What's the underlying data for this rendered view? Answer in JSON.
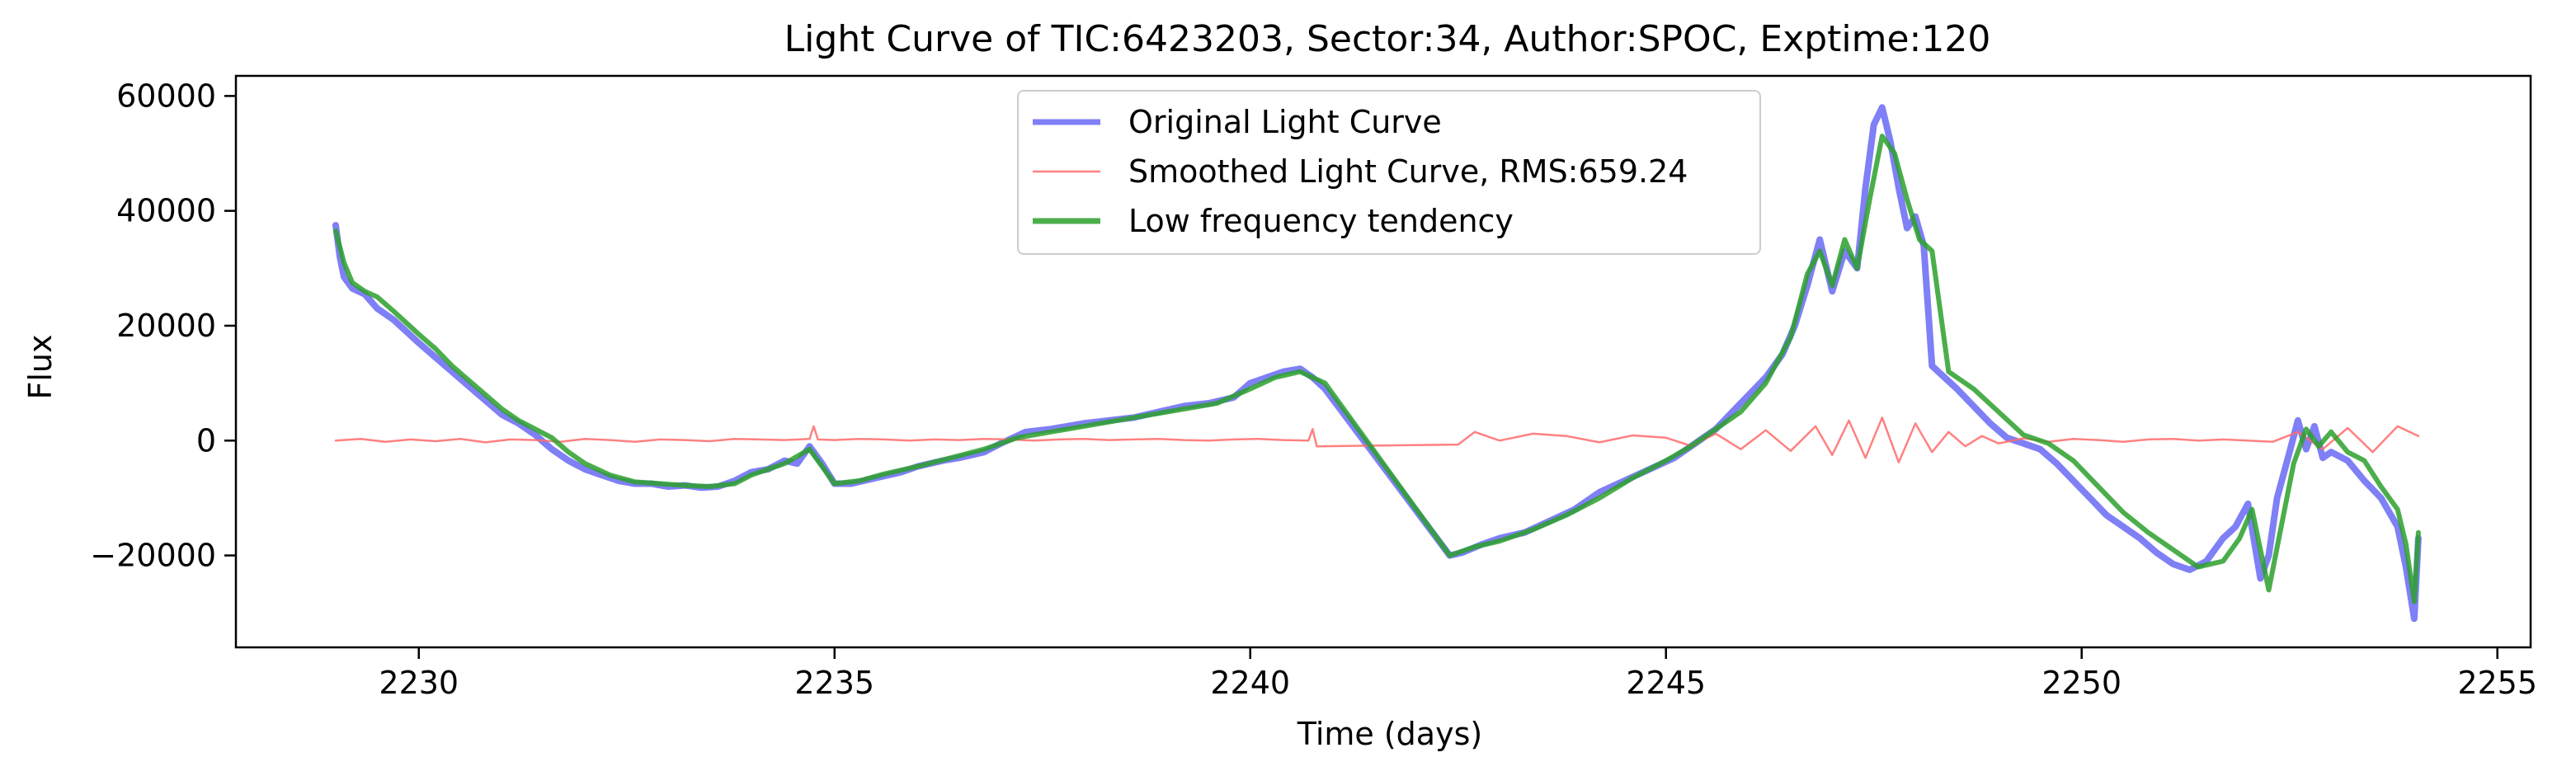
{
  "chart_data": {
    "type": "line",
    "title": "Light Curve of TIC:6423203, Sector:34, Author:SPOC, Exptime:120",
    "xlabel": "Time (days)",
    "ylabel": "Flux",
    "xlim": [
      2227.8,
      2255.4
    ],
    "ylim": [
      -36000,
      63500
    ],
    "xticks": [
      2230,
      2235,
      2240,
      2245,
      2250,
      2255
    ],
    "yticks": [
      -20000,
      0,
      20000,
      40000,
      60000
    ],
    "ytick_labels": [
      "−20000",
      "0",
      "20000",
      "40000",
      "60000"
    ],
    "grid": false,
    "legend_position": "upper center",
    "series": [
      {
        "name": "Original Light Curve",
        "color": "#0000ee",
        "style": "thick-line-alpha-0.5",
        "x": [
          2229.0,
          2229.05,
          2229.1,
          2229.2,
          2229.35,
          2229.5,
          2229.7,
          2229.85,
          2230.0,
          2230.2,
          2230.4,
          2230.6,
          2230.8,
          2231.0,
          2231.2,
          2231.4,
          2231.6,
          2231.8,
          2232.0,
          2232.2,
          2232.4,
          2232.6,
          2232.8,
          2233.0,
          2233.2,
          2233.4,
          2233.6,
          2233.8,
          2234.0,
          2234.2,
          2234.4,
          2234.55,
          2234.7,
          2234.85,
          2235.0,
          2235.2,
          2235.5,
          2235.8,
          2236.0,
          2236.3,
          2236.5,
          2236.8,
          2237.0,
          2237.3,
          2237.6,
          2238.0,
          2238.3,
          2238.6,
          2238.9,
          2239.2,
          2239.5,
          2239.8,
          2240.0,
          2240.2,
          2240.4,
          2240.6,
          2240.75,
          2240.9,
          2242.4,
          2242.55,
          2242.8,
          2243.0,
          2243.3,
          2243.6,
          2243.9,
          2244.2,
          2244.5,
          2244.8,
          2245.1,
          2245.4,
          2245.6,
          2245.8,
          2246.0,
          2246.2,
          2246.4,
          2246.55,
          2246.7,
          2246.85,
          2247.0,
          2247.15,
          2247.3,
          2247.4,
          2247.5,
          2247.6,
          2247.7,
          2247.8,
          2247.9,
          2248.0,
          2248.1,
          2248.2,
          2248.35,
          2248.5,
          2248.7,
          2248.9,
          2249.1,
          2249.3,
          2249.5,
          2249.7,
          2249.9,
          2250.1,
          2250.3,
          2250.5,
          2250.7,
          2250.9,
          2251.1,
          2251.3,
          2251.5,
          2251.7,
          2251.85,
          2252.0,
          2252.15,
          2252.25,
          2252.35,
          2252.5,
          2252.6,
          2252.7,
          2252.8,
          2252.9,
          2253.0,
          2253.2,
          2253.4,
          2253.6,
          2253.8,
          2253.9,
          2254.0,
          2254.05
        ],
        "y": [
          37500,
          32000,
          28500,
          26500,
          25500,
          23000,
          21000,
          19000,
          17000,
          14500,
          12000,
          9500,
          7000,
          4500,
          3000,
          1000,
          -1500,
          -3500,
          -5000,
          -6000,
          -7000,
          -7500,
          -7500,
          -8000,
          -7800,
          -8200,
          -8000,
          -7000,
          -5500,
          -5000,
          -3500,
          -4000,
          -1000,
          -4000,
          -7500,
          -7500,
          -6500,
          -5500,
          -4500,
          -3500,
          -3000,
          -2000,
          -500,
          1500,
          2000,
          3000,
          3500,
          4000,
          5000,
          6000,
          6500,
          7500,
          10000,
          11000,
          12000,
          12500,
          11000,
          9000,
          -20000,
          -19500,
          -18000,
          -17000,
          -16000,
          -14000,
          -12000,
          -9000,
          -7000,
          -5000,
          -3000,
          0,
          2000,
          5000,
          8000,
          11000,
          15000,
          20000,
          27000,
          35000,
          26000,
          33000,
          30000,
          44000,
          55000,
          58000,
          52000,
          44000,
          37000,
          39000,
          34000,
          13000,
          11000,
          9000,
          6000,
          3000,
          500,
          -500,
          -1500,
          -4000,
          -7000,
          -10000,
          -13000,
          -15000,
          -17000,
          -19500,
          -21500,
          -22500,
          -21000,
          -17000,
          -15000,
          -11000,
          -24000,
          -20000,
          -10000,
          -2000,
          3500,
          -1500,
          2500,
          -3000,
          -2000,
          -3500,
          -7000,
          -10000,
          -15000,
          -22000,
          -31000,
          -17000
        ]
      },
      {
        "name": "Smoothed Light Curve, RMS:659.24",
        "color": "#ff6b6b",
        "style": "thin-line-alpha-0.8",
        "x": [
          2229.0,
          2229.3,
          2229.6,
          2229.9,
          2230.2,
          2230.5,
          2230.8,
          2231.1,
          2231.4,
          2231.7,
          2232.0,
          2232.3,
          2232.6,
          2232.9,
          2233.2,
          2233.5,
          2233.8,
          2234.1,
          2234.4,
          2234.7,
          2234.75,
          2234.8,
          2235.0,
          2235.3,
          2235.6,
          2235.9,
          2236.2,
          2236.5,
          2236.8,
          2237.1,
          2237.4,
          2237.7,
          2238.0,
          2238.3,
          2238.6,
          2238.9,
          2239.2,
          2239.5,
          2239.8,
          2240.1,
          2240.4,
          2240.7,
          2240.75,
          2240.8,
          2242.5,
          2242.7,
          2243.0,
          2243.4,
          2243.8,
          2244.2,
          2244.6,
          2245.0,
          2245.3,
          2245.6,
          2245.9,
          2246.2,
          2246.5,
          2246.8,
          2247.0,
          2247.2,
          2247.4,
          2247.6,
          2247.8,
          2248.0,
          2248.2,
          2248.4,
          2248.6,
          2248.8,
          2249.0,
          2249.3,
          2249.6,
          2249.9,
          2250.2,
          2250.5,
          2250.8,
          2251.1,
          2251.4,
          2251.7,
          2252.0,
          2252.3,
          2252.6,
          2252.9,
          2253.2,
          2253.5,
          2253.8,
          2254.05
        ],
        "y": [
          0,
          300,
          -200,
          200,
          -100,
          300,
          -300,
          200,
          100,
          -200,
          300,
          100,
          -200,
          200,
          100,
          -100,
          300,
          200,
          100,
          300,
          2500,
          200,
          100,
          300,
          200,
          0,
          200,
          100,
          300,
          200,
          0,
          200,
          300,
          100,
          200,
          300,
          100,
          0,
          200,
          300,
          100,
          0,
          2000,
          -1000,
          -700,
          1500,
          0,
          1200,
          800,
          -300,
          900,
          500,
          -900,
          1200,
          -1500,
          1800,
          -1800,
          2500,
          -2500,
          3500,
          -3000,
          4000,
          -3800,
          3000,
          -2000,
          1500,
          -1000,
          800,
          -500,
          400,
          -200,
          300,
          100,
          -200,
          200,
          300,
          0,
          200,
          0,
          -200,
          1500,
          -1500,
          2200,
          -2000,
          2500,
          800
        ]
      },
      {
        "name": "Low frequency tendency",
        "color": "#2ca02c",
        "style": "thick-line-alpha-0.85",
        "x": [
          2229.0,
          2229.1,
          2229.2,
          2229.35,
          2229.5,
          2229.7,
          2229.85,
          2230.0,
          2230.2,
          2230.4,
          2230.6,
          2230.8,
          2231.0,
          2231.2,
          2231.4,
          2231.6,
          2231.8,
          2232.0,
          2232.3,
          2232.6,
          2232.9,
          2233.2,
          2233.5,
          2233.8,
          2234.0,
          2234.2,
          2234.4,
          2234.7,
          2234.85,
          2235.0,
          2235.3,
          2235.6,
          2236.0,
          2236.4,
          2236.8,
          2237.2,
          2237.6,
          2238.0,
          2238.4,
          2238.8,
          2239.2,
          2239.6,
          2240.0,
          2240.3,
          2240.6,
          2240.9,
          2242.4,
          2242.7,
          2243.0,
          2243.4,
          2243.8,
          2244.2,
          2244.6,
          2245.0,
          2245.3,
          2245.6,
          2245.9,
          2246.2,
          2246.5,
          2246.7,
          2246.85,
          2247.0,
          2247.15,
          2247.3,
          2247.45,
          2247.6,
          2247.75,
          2247.9,
          2248.05,
          2248.2,
          2248.4,
          2248.7,
          2249.0,
          2249.3,
          2249.6,
          2249.9,
          2250.2,
          2250.5,
          2250.8,
          2251.1,
          2251.4,
          2251.7,
          2251.9,
          2252.05,
          2252.25,
          2252.4,
          2252.55,
          2252.7,
          2252.85,
          2253.0,
          2253.2,
          2253.4,
          2253.6,
          2253.8,
          2253.9,
          2254.0,
          2254.05
        ],
        "y": [
          36500,
          31000,
          27500,
          26000,
          25000,
          22500,
          20500,
          18500,
          16000,
          13000,
          10500,
          8000,
          5500,
          3500,
          2000,
          500,
          -2000,
          -4000,
          -6000,
          -7200,
          -7500,
          -7800,
          -8000,
          -7500,
          -6000,
          -5000,
          -4000,
          -1500,
          -4500,
          -7500,
          -7000,
          -5800,
          -4500,
          -3000,
          -1500,
          500,
          1500,
          2500,
          3500,
          4500,
          5500,
          6500,
          9000,
          11000,
          12000,
          10000,
          -20000,
          -18500,
          -17500,
          -15500,
          -13000,
          -10000,
          -6500,
          -3500,
          -1000,
          2000,
          5000,
          10000,
          18000,
          29000,
          33000,
          27000,
          35000,
          30000,
          42000,
          53000,
          50000,
          42000,
          35000,
          33000,
          12000,
          9000,
          5000,
          1000,
          -500,
          -3500,
          -8000,
          -12500,
          -16000,
          -19000,
          -22000,
          -21000,
          -17000,
          -12000,
          -26000,
          -15000,
          -4000,
          2000,
          -1000,
          1500,
          -2000,
          -3500,
          -8000,
          -12000,
          -18000,
          -28000,
          -16000
        ]
      }
    ]
  }
}
